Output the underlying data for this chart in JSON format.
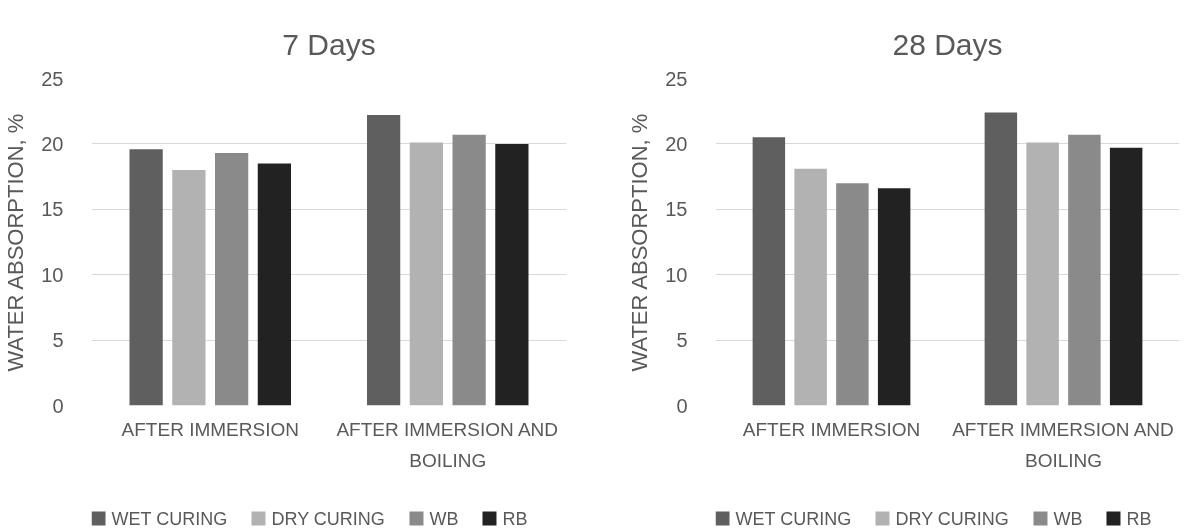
{
  "chart_data": [
    {
      "type": "bar",
      "title": "7 Days",
      "ylabel": "WATER ABSORPTION, %",
      "categories": [
        "AFTER IMMERSION",
        "AFTER IMMERSION AND BOILING"
      ],
      "series": [
        {
          "name": "WET CURING",
          "color": "#5f5f5f",
          "values": [
            19.6,
            22.2
          ]
        },
        {
          "name": "DRY CURING",
          "color": "#b2b2b2",
          "values": [
            18.0,
            20.1
          ]
        },
        {
          "name": "WB",
          "color": "#8a8a8a",
          "values": [
            19.3,
            20.7
          ]
        },
        {
          "name": "RB",
          "color": "#222222",
          "values": [
            18.5,
            20.0
          ]
        }
      ],
      "ylim": [
        0,
        25
      ],
      "yticks": [
        0,
        5,
        10,
        15,
        20,
        25
      ],
      "grid": "y",
      "legend": "bottom"
    },
    {
      "type": "bar",
      "title": "28 Days",
      "ylabel": "WATER ABSORPTION, %",
      "categories": [
        "AFTER IMMERSION",
        "AFTER IMMERSION AND BOILING"
      ],
      "series": [
        {
          "name": "WET CURING",
          "color": "#5f5f5f",
          "values": [
            20.5,
            22.4
          ]
        },
        {
          "name": "DRY CURING",
          "color": "#b2b2b2",
          "values": [
            18.1,
            20.1
          ]
        },
        {
          "name": "WB",
          "color": "#8a8a8a",
          "values": [
            17.0,
            20.7
          ]
        },
        {
          "name": "RB",
          "color": "#222222",
          "values": [
            16.6,
            19.7
          ]
        }
      ],
      "ylim": [
        0,
        25
      ],
      "yticks": [
        0,
        5,
        10,
        15,
        20,
        25
      ],
      "grid": "y",
      "legend": "bottom"
    }
  ]
}
